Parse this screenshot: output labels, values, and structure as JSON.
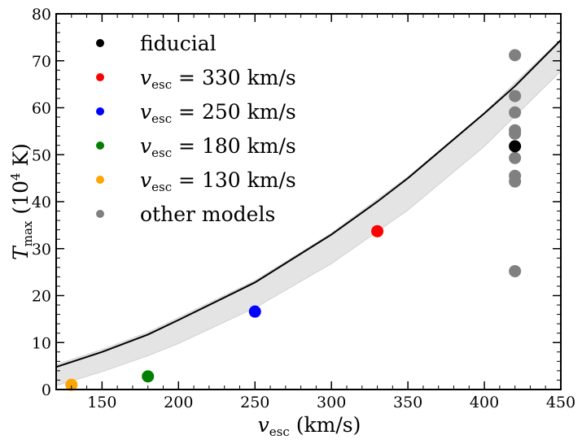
{
  "chart_data": {
    "type": "scatter",
    "title": "",
    "xlabel": {
      "main": "v",
      "sub": "esc",
      "units": "(km/s)"
    },
    "ylabel": {
      "main": "T",
      "sub": "max",
      "units_prefix": "(10",
      "units_exp": "4",
      "units_suffix": " K)"
    },
    "xlim": [
      120,
      450
    ],
    "ylim": [
      0,
      80
    ],
    "xticks": [
      150,
      200,
      250,
      300,
      350,
      400,
      450
    ],
    "yticks": [
      0,
      10,
      20,
      30,
      40,
      50,
      60,
      70,
      80
    ],
    "grid": false,
    "legend_position": "top-left",
    "series": [
      {
        "name": "fiducial",
        "color": "#000000",
        "x": [
          420
        ],
        "y": [
          51.8
        ]
      },
      {
        "name": "vesc = 330 km/s",
        "label_main": "v",
        "label_sub": "esc",
        "label_rest": " = 330 km/s",
        "color": "#ff0000",
        "x": [
          330
        ],
        "y": [
          33.7
        ]
      },
      {
        "name": "vesc = 250 km/s",
        "label_main": "v",
        "label_sub": "esc",
        "label_rest": " = 250 km/s",
        "color": "#0000ff",
        "x": [
          250
        ],
        "y": [
          16.6
        ]
      },
      {
        "name": "vesc = 180 km/s",
        "label_main": "v",
        "label_sub": "esc",
        "label_rest": " = 180 km/s",
        "color": "#008000",
        "x": [
          180
        ],
        "y": [
          2.8
        ]
      },
      {
        "name": "vesc = 130 km/s",
        "label_main": "v",
        "label_sub": "esc",
        "label_rest": " = 130 km/s",
        "color": "#ffa500",
        "x": [
          130
        ],
        "y": [
          1.0
        ]
      },
      {
        "name": "other models",
        "color": "#808080",
        "x": [
          420,
          420,
          420,
          420,
          420,
          420,
          420,
          420,
          420
        ],
        "y": [
          71.2,
          62.5,
          59.0,
          55.2,
          54.5,
          49.3,
          45.5,
          44.3,
          25.2
        ]
      }
    ],
    "fit_curve": {
      "color": "#000000",
      "points": [
        [
          120,
          4.8
        ],
        [
          150,
          8.0
        ],
        [
          180,
          11.7
        ],
        [
          200,
          14.8
        ],
        [
          250,
          22.8
        ],
        [
          300,
          33.0
        ],
        [
          330,
          40.0
        ],
        [
          350,
          45.0
        ],
        [
          400,
          58.8
        ],
        [
          420,
          64.6
        ],
        [
          450,
          74.4
        ]
      ]
    },
    "band": {
      "color": "#e4e4e4",
      "upper": [
        [
          120,
          5.3
        ],
        [
          150,
          8.5
        ],
        [
          180,
          12.2
        ],
        [
          200,
          15.3
        ],
        [
          250,
          23.2
        ],
        [
          300,
          33.3
        ],
        [
          350,
          45.3
        ],
        [
          400,
          59.0
        ],
        [
          450,
          74.6
        ]
      ],
      "lower": [
        [
          120,
          0.8
        ],
        [
          150,
          3.8
        ],
        [
          180,
          7.2
        ],
        [
          200,
          9.8
        ],
        [
          250,
          17.4
        ],
        [
          300,
          26.8
        ],
        [
          350,
          38.2
        ],
        [
          400,
          51.8
        ],
        [
          450,
          67.8
        ]
      ]
    }
  }
}
